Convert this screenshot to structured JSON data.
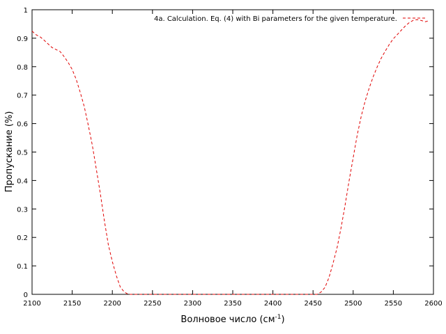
{
  "chart_data": {
    "type": "line",
    "xlabel": "Волновое число (см",
    "xlabel_sup": "-1",
    "xlabel_end": ")",
    "ylabel": "Пропускание (%)",
    "xlim": [
      2100,
      2600
    ],
    "ylim": [
      0,
      1
    ],
    "x_ticks": [
      "2100",
      "2150",
      "2200",
      "2250",
      "2300",
      "2350",
      "2400",
      "2450",
      "2500",
      "2550",
      "2600"
    ],
    "y_ticks": [
      "0",
      "0.1",
      "0.2",
      "0.3",
      "0.4",
      "0.5",
      "0.6",
      "0.7",
      "0.8",
      "0.9",
      "1"
    ],
    "grid": false,
    "legend_position": "top-right",
    "series": [
      {
        "name": "4a. Calculation. Eq. (4) with Bi parameters for the given temperature.",
        "color": "#e00000",
        "dash": "dashed",
        "x": [
          2100,
          2105,
          2110,
          2115,
          2120,
          2125,
          2130,
          2135,
          2140,
          2145,
          2150,
          2155,
          2160,
          2165,
          2170,
          2175,
          2180,
          2185,
          2190,
          2195,
          2200,
          2205,
          2210,
          2215,
          2220,
          2222,
          2455,
          2460,
          2465,
          2470,
          2475,
          2480,
          2485,
          2490,
          2495,
          2500,
          2505,
          2510,
          2515,
          2520,
          2525,
          2530,
          2535,
          2540,
          2545,
          2550,
          2555,
          2560,
          2565,
          2570,
          2575,
          2580,
          2585,
          2590,
          2595
        ],
        "y": [
          0.925,
          0.912,
          0.905,
          0.893,
          0.88,
          0.867,
          0.86,
          0.853,
          0.835,
          0.815,
          0.79,
          0.755,
          0.71,
          0.66,
          0.595,
          0.525,
          0.44,
          0.355,
          0.26,
          0.175,
          0.115,
          0.065,
          0.025,
          0.008,
          0.0,
          0.0,
          0.0,
          0.008,
          0.025,
          0.06,
          0.11,
          0.165,
          0.235,
          0.315,
          0.4,
          0.48,
          0.56,
          0.625,
          0.68,
          0.725,
          0.765,
          0.8,
          0.83,
          0.855,
          0.878,
          0.898,
          0.913,
          0.928,
          0.943,
          0.955,
          0.963,
          0.965,
          0.962,
          0.958,
          0.962
        ]
      }
    ]
  }
}
